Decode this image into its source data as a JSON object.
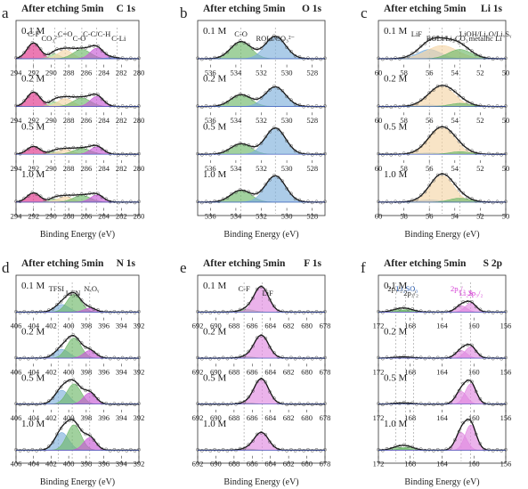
{
  "chart_data": [
    {
      "type": "line",
      "panel_letter": "a",
      "title": "After etching 5min",
      "region": "C 1s",
      "xlabel": "Binding Energy (eV)",
      "xlim": [
        294,
        280
      ],
      "xticks": [
        294,
        292,
        290,
        288,
        286,
        284,
        282,
        280
      ],
      "series": [
        {
          "name": "0.1 M",
          "peaks": [
            [
              292.0,
              0.6,
              0.75
            ],
            [
              289.6,
              0.18,
              0.6
            ],
            [
              288.4,
              0.32,
              0.85
            ],
            [
              286.5,
              0.35,
              1.0
            ],
            [
              284.8,
              0.4,
              0.75
            ],
            [
              283.0,
              0.05,
              0.6
            ]
          ]
        },
        {
          "name": "0.2 M",
          "peaks": [
            [
              292.0,
              0.55,
              0.75
            ],
            [
              289.6,
              0.18,
              0.6
            ],
            [
              288.4,
              0.3,
              0.85
            ],
            [
              286.5,
              0.32,
              1.0
            ],
            [
              284.8,
              0.38,
              0.75
            ]
          ]
        },
        {
          "name": "0.5 M",
          "peaks": [
            [
              292.0,
              0.3,
              0.75
            ],
            [
              289.6,
              0.1,
              0.6
            ],
            [
              288.4,
              0.18,
              0.85
            ],
            [
              286.5,
              0.22,
              1.0
            ],
            [
              284.8,
              0.28,
              0.75
            ]
          ]
        },
        {
          "name": "1.0 M",
          "peaks": [
            [
              292.0,
              0.35,
              0.75
            ],
            [
              289.6,
              0.12,
              0.6
            ],
            [
              288.4,
              0.2,
              0.85
            ],
            [
              286.5,
              0.25,
              1.0
            ],
            [
              284.8,
              0.26,
              0.75
            ]
          ]
        }
      ],
      "component_colors": [
        "#e0338a",
        "#9fd68f",
        "#f5d6a8",
        "#6fb86a",
        "#c75ad6",
        "#6f8fd0"
      ],
      "dashed_lines": [
        292.0,
        289.6,
        288.4,
        286.5,
        284.8,
        282.5
      ],
      "peak_labels": [
        {
          "text": "C-F",
          "x": 292.0
        },
        {
          "text": "CO₃²⁻",
          "x": 290.0
        },
        {
          "text": "C=O",
          "x": 288.4
        },
        {
          "text": "C-O",
          "x": 286.8
        },
        {
          "text": "C-C/C-H",
          "x": 284.8
        },
        {
          "text": "C-Li",
          "x": 282.3
        }
      ]
    },
    {
      "type": "line",
      "panel_letter": "b",
      "title": "After etching 5min",
      "region": "O 1s",
      "xlabel": "Binding Energy (eV)",
      "xlim": [
        537,
        527
      ],
      "xticks": [
        536,
        534,
        532,
        530,
        528
      ],
      "series": [
        {
          "name": "0.1 M",
          "peaks": [
            [
              533.6,
              0.65,
              0.8
            ],
            [
              530.9,
              0.85,
              0.8
            ]
          ]
        },
        {
          "name": "0.2 M",
          "peaks": [
            [
              533.6,
              0.45,
              0.8
            ],
            [
              530.9,
              0.75,
              0.8
            ]
          ]
        },
        {
          "name": "0.5 M",
          "peaks": [
            [
              533.6,
              0.4,
              0.8
            ],
            [
              530.9,
              1.0,
              0.8
            ]
          ]
        },
        {
          "name": "1.0 M",
          "peaks": [
            [
              533.6,
              0.45,
              0.8
            ],
            [
              530.9,
              1.0,
              0.8
            ]
          ]
        }
      ],
      "component_colors": [
        "#6fb86a",
        "#7fb0dc"
      ],
      "dashed_lines": [
        533.6,
        530.9
      ],
      "peak_labels": [
        {
          "text": "C-O",
          "x": 533.6
        },
        {
          "text": "ROLi/CO₃²⁻",
          "x": 530.9
        }
      ]
    },
    {
      "type": "line",
      "panel_letter": "c",
      "title": "After etching 5min",
      "region": "Li 1s",
      "xlabel": "Binding Energy (eV)",
      "xlim": [
        60,
        50
      ],
      "xticks": [
        60,
        58,
        56,
        54,
        52,
        50
      ],
      "series": [
        {
          "name": "0.1 M",
          "peaks": [
            [
              56.0,
              0.35,
              0.9
            ],
            [
              55.0,
              0.5,
              1.2
            ],
            [
              53.6,
              0.35,
              0.9
            ]
          ]
        },
        {
          "name": "0.2 M",
          "peaks": [
            [
              56.0,
              0.05,
              0.9
            ],
            [
              55.0,
              0.75,
              1.0
            ],
            [
              53.6,
              0.12,
              0.8
            ]
          ]
        },
        {
          "name": "0.5 M",
          "peaks": [
            [
              56.0,
              0.05,
              0.9
            ],
            [
              55.0,
              1.0,
              1.0
            ],
            [
              53.6,
              0.1,
              0.8
            ]
          ]
        },
        {
          "name": "1.0 M",
          "peaks": [
            [
              56.0,
              0.08,
              0.9
            ],
            [
              55.0,
              1.0,
              0.9
            ],
            [
              53.6,
              0.15,
              0.8
            ]
          ]
        }
      ],
      "component_colors": [
        "#7fb0dc",
        "#f5d6a8",
        "#6fb86a"
      ],
      "dashed_lines": [
        56.0,
        55.0,
        53.6
      ],
      "peak_labels": [
        {
          "text": "LiF",
          "x": 57.0
        },
        {
          "text": "ROLi/Li₂CO₃",
          "x": 54.6
        },
        {
          "text": "LiOH/Li₂O/LiₓSᵧ",
          "x": 51.6
        },
        {
          "text": "metallic Li",
          "x": 51.6
        }
      ]
    },
    {
      "type": "line",
      "panel_letter": "d",
      "title": "After etching 5min",
      "region": "N 1s",
      "xlabel": "Binding Energy (eV)",
      "xlim": [
        406,
        392
      ],
      "xticks": [
        406,
        404,
        402,
        400,
        398,
        396,
        394,
        392
      ],
      "series": [
        {
          "name": "0.1 M",
          "peaks": [
            [
              400.8,
              0.3,
              0.8
            ],
            [
              399.4,
              0.7,
              0.8
            ],
            [
              397.6,
              0.15,
              0.7
            ]
          ]
        },
        {
          "name": "0.2 M",
          "peaks": [
            [
              400.8,
              0.35,
              0.8
            ],
            [
              399.4,
              0.8,
              0.8
            ],
            [
              397.6,
              0.3,
              0.7
            ]
          ]
        },
        {
          "name": "0.5 M",
          "peaks": [
            [
              400.8,
              0.55,
              0.8
            ],
            [
              399.4,
              0.8,
              0.8
            ],
            [
              397.6,
              0.45,
              0.7
            ]
          ]
        },
        {
          "name": "1.0 M",
          "peaks": [
            [
              400.8,
              0.7,
              0.8
            ],
            [
              399.4,
              1.0,
              0.8
            ],
            [
              397.6,
              0.5,
              0.7
            ]
          ]
        }
      ],
      "component_colors": [
        "#7fb0dc",
        "#6fb86a",
        "#c75ad6"
      ],
      "dashed_lines": [
        401.2,
        399.6,
        397.6
      ],
      "peak_labels": [
        {
          "text": "TFSI",
          "x": 401.4
        },
        {
          "text": "Li₃N",
          "x": 399.5
        },
        {
          "text": "NₓOᵧ",
          "x": 397.4
        }
      ]
    },
    {
      "type": "line",
      "panel_letter": "e",
      "title": "After etching 5min",
      "region": "F 1s",
      "xlabel": "Binding Energy (eV)",
      "xlim": [
        692,
        678
      ],
      "xticks": [
        692,
        690,
        688,
        686,
        684,
        682,
        680,
        678
      ],
      "series": [
        {
          "name": "0.1 M",
          "peaks": [
            [
              686.6,
              0.1,
              0.8
            ],
            [
              685.0,
              1.0,
              0.8
            ]
          ]
        },
        {
          "name": "0.2 M",
          "peaks": [
            [
              686.6,
              0.05,
              0.8
            ],
            [
              685.0,
              0.9,
              0.8
            ]
          ]
        },
        {
          "name": "0.5 M",
          "peaks": [
            [
              686.6,
              0.05,
              0.8
            ],
            [
              685.0,
              1.0,
              0.8
            ]
          ]
        },
        {
          "name": "1.0 M",
          "peaks": [
            [
              686.6,
              0.05,
              0.8
            ],
            [
              685.0,
              0.7,
              0.8
            ]
          ]
        }
      ],
      "component_colors": [
        "#6fb86a",
        "#e08ae0"
      ],
      "dashed_lines": [
        686.9,
        684.9
      ],
      "peak_labels": [
        {
          "text": "C-F",
          "x": 686.9
        },
        {
          "text": "LiF",
          "x": 684.3
        }
      ]
    },
    {
      "type": "line",
      "panel_letter": "f",
      "title": "After etching 5min",
      "region": "S 2p",
      "xlabel": "Binding Energy (eV)",
      "xlim": [
        172,
        156
      ],
      "xticks": [
        172,
        168,
        164,
        160,
        156
      ],
      "series": [
        {
          "name": "0.1 M",
          "peaks": [
            [
              169.5,
              0.1,
              0.9
            ],
            [
              168.3,
              0.1,
              0.9
            ],
            [
              161.6,
              0.25,
              0.7
            ],
            [
              160.4,
              0.35,
              0.7
            ]
          ]
        },
        {
          "name": "0.2 M",
          "peaks": [
            [
              169.5,
              0.03,
              0.9
            ],
            [
              168.3,
              0.03,
              0.9
            ],
            [
              161.6,
              0.3,
              0.7
            ],
            [
              160.4,
              0.45,
              0.7
            ]
          ]
        },
        {
          "name": "0.5 M",
          "peaks": [
            [
              169.5,
              0.03,
              0.9
            ],
            [
              168.3,
              0.03,
              0.9
            ],
            [
              161.6,
              0.5,
              0.7
            ],
            [
              160.4,
              0.8,
              0.7
            ]
          ]
        },
        {
          "name": "1.0 M",
          "peaks": [
            [
              169.5,
              0.12,
              0.9
            ],
            [
              168.3,
              0.12,
              0.9
            ],
            [
              161.6,
              0.7,
              0.7
            ],
            [
              160.4,
              1.0,
              0.7
            ]
          ]
        }
      ],
      "component_colors": [
        "#6fb86a",
        "#6fb86a",
        "#e08ae0",
        "#e08ae0"
      ],
      "dashed_lines": [
        169.8,
        168.6,
        167.6,
        161.6,
        160.4
      ],
      "peak_labels": [
        {
          "text": "Li₂SO₃",
          "x": 168.4,
          "color": "#2f63b8"
        },
        {
          "text": "Li₂S",
          "x": 161.0,
          "color": "#d43bd4"
        },
        {
          "text": "2p₁/₂",
          "x": 162.0,
          "color": "#d43bd4"
        },
        {
          "text": "2p₃/₂",
          "x": 159.8,
          "color": "#d43bd4"
        },
        {
          "text": "2p₁/₂",
          "x": 169.9,
          "color": "#222222"
        },
        {
          "text": "2p₃/₂",
          "x": 167.9,
          "color": "#222222"
        }
      ]
    }
  ]
}
